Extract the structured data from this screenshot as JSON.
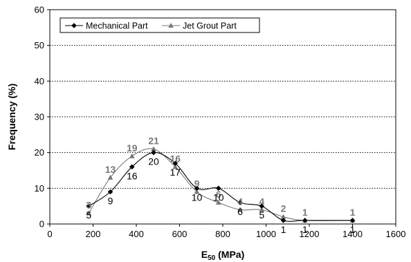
{
  "chart_data": {
    "type": "line",
    "xlabel": "E50 (MPa)",
    "xlabel_main": "E",
    "xlabel_sub": "50",
    "xlabel_unit": " (MPa)",
    "ylabel": "Frequency (%)",
    "xlim": [
      0,
      1600
    ],
    "ylim": [
      0,
      60
    ],
    "xticks": [
      "0",
      "200",
      "400",
      "600",
      "800",
      "1000",
      "1200",
      "1400",
      "1600"
    ],
    "yticks": [
      "0",
      "10",
      "20",
      "30",
      "40",
      "50",
      "60"
    ],
    "grid": "horizontal dotted",
    "legend_position": "top-left",
    "series": [
      {
        "name": "Mechanical Part",
        "color": "#000000",
        "marker": "diamond",
        "x": [
          180,
          280,
          380,
          480,
          580,
          680,
          780,
          880,
          980,
          1080,
          1180,
          1400
        ],
        "y": [
          5,
          9,
          16,
          20,
          17,
          10,
          10,
          6,
          5,
          1,
          1,
          1
        ],
        "labels": [
          "5",
          "9",
          "16",
          "20",
          "17",
          "10",
          "10",
          "6",
          "5",
          "1",
          "1",
          "1"
        ]
      },
      {
        "name": "Jet Grout Part",
        "color": "#777777",
        "marker": "triangle",
        "x": [
          180,
          280,
          380,
          480,
          580,
          680,
          780,
          880,
          980,
          1080,
          1180,
          1400
        ],
        "y": [
          3,
          13,
          19,
          21,
          16,
          9,
          6,
          4,
          4,
          2,
          1,
          1
        ],
        "labels": [
          "3",
          "13",
          "19",
          "21",
          "16",
          "9",
          "6",
          "4",
          "4",
          "2",
          "1",
          "1"
        ]
      }
    ]
  }
}
